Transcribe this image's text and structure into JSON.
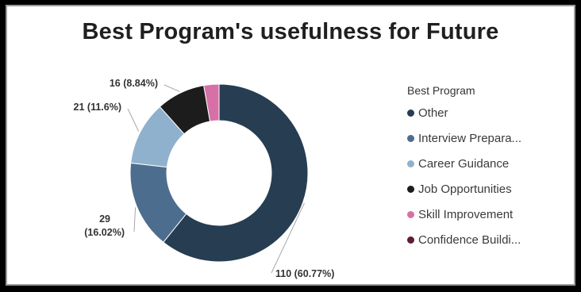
{
  "chart_data": {
    "type": "donut",
    "title": "Best Program's usefulness for Future",
    "legend_title": "Best Program",
    "legend_position": "right",
    "categories": [
      "Other",
      "Interview Prepara...",
      "Career Guidance",
      "Job Opportunities",
      "Skill Improvement",
      "Confidence Buildi..."
    ],
    "values": [
      110,
      29,
      21,
      16,
      5,
      0
    ],
    "data_labels": [
      "110 (60.77%)",
      "29 (16.02%)",
      "21 (11.6%)",
      "16 (8.84%)",
      "",
      ""
    ],
    "colors": [
      "#263d52",
      "#4d6d8f",
      "#8fb1cd",
      "#1c1c1c",
      "#d671a8",
      "#5a1d3a"
    ]
  }
}
